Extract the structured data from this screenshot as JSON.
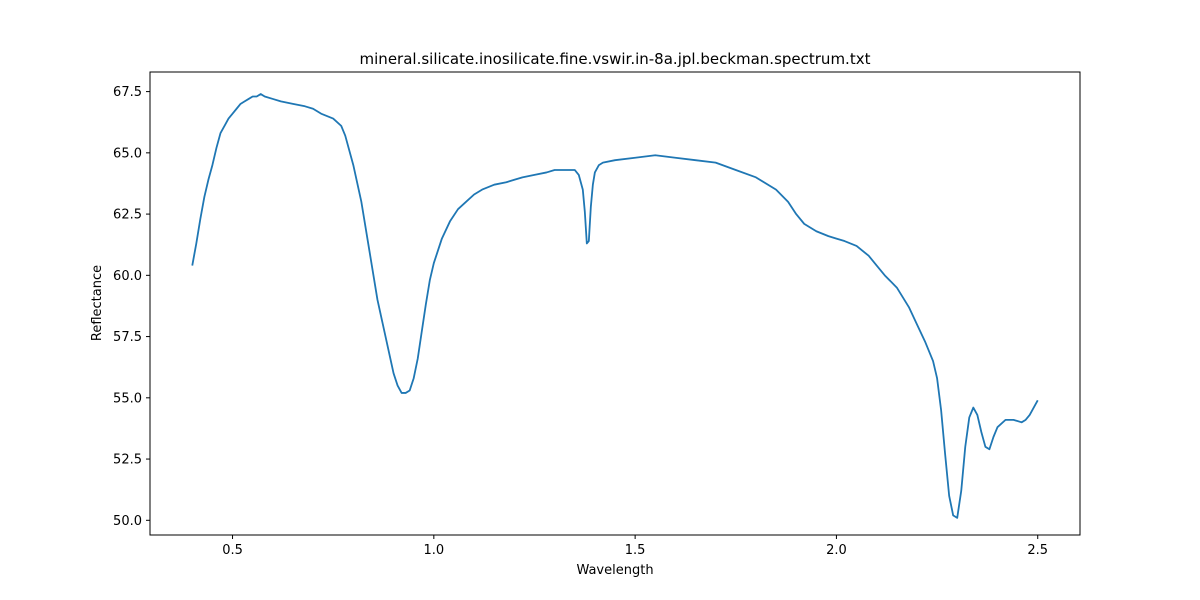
{
  "chart_data": {
    "type": "line",
    "title": "mineral.silicate.inosilicate.fine.vswir.in-8a.jpl.beckman.spectrum.txt",
    "xlabel": "Wavelength",
    "ylabel": "Reflectance",
    "xlim": [
      0.295,
      2.605
    ],
    "ylim": [
      49.4,
      68.3
    ],
    "xticks": [
      0.5,
      1.0,
      1.5,
      2.0,
      2.5
    ],
    "xtick_labels": [
      "0.5",
      "1.0",
      "1.5",
      "2.0",
      "2.5"
    ],
    "yticks": [
      50.0,
      52.5,
      55.0,
      57.5,
      60.0,
      62.5,
      65.0,
      67.5
    ],
    "ytick_labels": [
      "50.0",
      "52.5",
      "55.0",
      "57.5",
      "60.0",
      "62.5",
      "65.0",
      "67.5"
    ],
    "grid": false,
    "series": [
      {
        "name": "spectrum",
        "color": "#1f77b4",
        "x": [
          0.4,
          0.41,
          0.42,
          0.43,
          0.44,
          0.45,
          0.46,
          0.47,
          0.48,
          0.49,
          0.5,
          0.51,
          0.52,
          0.53,
          0.54,
          0.55,
          0.56,
          0.57,
          0.58,
          0.6,
          0.62,
          0.65,
          0.68,
          0.7,
          0.72,
          0.75,
          0.77,
          0.78,
          0.8,
          0.82,
          0.84,
          0.86,
          0.88,
          0.9,
          0.91,
          0.92,
          0.93,
          0.94,
          0.95,
          0.96,
          0.97,
          0.98,
          0.99,
          1.0,
          1.02,
          1.04,
          1.06,
          1.08,
          1.1,
          1.12,
          1.15,
          1.18,
          1.2,
          1.22,
          1.25,
          1.28,
          1.3,
          1.33,
          1.35,
          1.36,
          1.37,
          1.375,
          1.38,
          1.385,
          1.39,
          1.395,
          1.4,
          1.41,
          1.42,
          1.45,
          1.5,
          1.55,
          1.6,
          1.65,
          1.7,
          1.75,
          1.8,
          1.85,
          1.88,
          1.9,
          1.92,
          1.95,
          1.98,
          2.0,
          2.02,
          2.05,
          2.08,
          2.1,
          2.12,
          2.15,
          2.18,
          2.2,
          2.22,
          2.24,
          2.25,
          2.26,
          2.27,
          2.28,
          2.29,
          2.3,
          2.31,
          2.32,
          2.33,
          2.34,
          2.35,
          2.36,
          2.37,
          2.38,
          2.39,
          2.4,
          2.42,
          2.44,
          2.46,
          2.47,
          2.48,
          2.5
        ],
        "values": [
          60.4,
          61.3,
          62.3,
          63.2,
          63.9,
          64.5,
          65.2,
          65.8,
          66.1,
          66.4,
          66.6,
          66.8,
          67.0,
          67.1,
          67.2,
          67.3,
          67.3,
          67.4,
          67.3,
          67.2,
          67.1,
          67.0,
          66.9,
          66.8,
          66.6,
          66.4,
          66.1,
          65.7,
          64.5,
          63.0,
          61.0,
          59.0,
          57.5,
          56.0,
          55.5,
          55.2,
          55.2,
          55.3,
          55.8,
          56.6,
          57.7,
          58.8,
          59.8,
          60.5,
          61.5,
          62.2,
          62.7,
          63.0,
          63.3,
          63.5,
          63.7,
          63.8,
          63.9,
          64.0,
          64.1,
          64.2,
          64.3,
          64.3,
          64.3,
          64.1,
          63.5,
          62.6,
          61.3,
          61.4,
          62.8,
          63.7,
          64.2,
          64.5,
          64.6,
          64.7,
          64.8,
          64.9,
          64.8,
          64.7,
          64.6,
          64.3,
          64.0,
          63.5,
          63.0,
          62.5,
          62.1,
          61.8,
          61.6,
          61.5,
          61.4,
          61.2,
          60.8,
          60.4,
          60.0,
          59.5,
          58.7,
          58.0,
          57.3,
          56.5,
          55.8,
          54.5,
          52.7,
          51.0,
          50.2,
          50.1,
          51.2,
          53.0,
          54.2,
          54.6,
          54.3,
          53.6,
          53.0,
          52.9,
          53.4,
          53.8,
          54.1,
          54.1,
          54.0,
          54.1,
          54.3,
          54.9
        ]
      }
    ]
  }
}
